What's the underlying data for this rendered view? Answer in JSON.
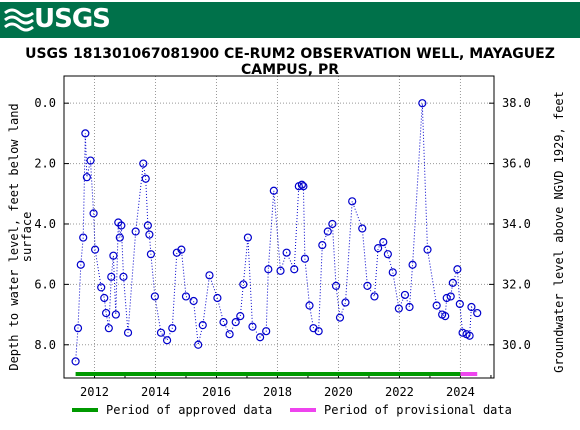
{
  "banner": {
    "logo_text": "USGS"
  },
  "colors": {
    "banner": "#00714a",
    "data_marker": "#0000cc",
    "approved": "#009900",
    "provisional": "#ee44ee"
  },
  "chart_data": {
    "type": "line",
    "title": "USGS 181301067081900 CE-RUM2 OBSERVATION WELL, MAYAGUEZ CAMPUS, PR",
    "ylabel_left": "Depth to water level, feet below land surface",
    "ylabel_left_lines": [
      "Depth to water level, feet below land",
      "surface"
    ],
    "ylabel_right": "Groundwater level above NGVD 1929, feet",
    "y_left_inverted": true,
    "ylim_left": [
      9.1,
      -0.9
    ],
    "y_left_ticks": [
      0.0,
      2.0,
      4.0,
      6.0,
      8.0
    ],
    "y_left_tick_labels": [
      "0.0",
      "2.0",
      "4.0",
      "6.0",
      "8.0"
    ],
    "y_right_tick_labels": [
      "38.0",
      "36.0",
      "34.0",
      "32.0",
      "30.0"
    ],
    "x_range": [
      2011.0,
      2025.1
    ],
    "x_ticks": [
      2012,
      2014,
      2016,
      2018,
      2020,
      2022,
      2024
    ],
    "x_tick_labels": [
      "2012",
      "2014",
      "2016",
      "2018",
      "2020",
      "2022",
      "2024"
    ],
    "grid": true,
    "legend_position": "bottom",
    "series": [
      {
        "name": "Depth to water level",
        "x": [
          2011.38,
          2011.46,
          2011.55,
          2011.63,
          2011.7,
          2011.75,
          2011.87,
          2011.97,
          2012.02,
          2012.22,
          2012.32,
          2012.38,
          2012.47,
          2012.55,
          2012.62,
          2012.7,
          2012.78,
          2012.83,
          2012.88,
          2012.95,
          2013.1,
          2013.35,
          2013.6,
          2013.68,
          2013.75,
          2013.8,
          2013.85,
          2013.98,
          2014.18,
          2014.38,
          2014.55,
          2014.7,
          2014.85,
          2015.0,
          2015.25,
          2015.4,
          2015.55,
          2015.77,
          2016.03,
          2016.23,
          2016.43,
          2016.63,
          2016.78,
          2016.88,
          2017.03,
          2017.18,
          2017.43,
          2017.63,
          2017.7,
          2017.88,
          2018.1,
          2018.3,
          2018.55,
          2018.7,
          2018.8,
          2018.85,
          2018.9,
          2019.05,
          2019.18,
          2019.35,
          2019.47,
          2019.65,
          2019.8,
          2019.92,
          2020.05,
          2020.23,
          2020.45,
          2020.78,
          2020.95,
          2021.18,
          2021.3,
          2021.47,
          2021.62,
          2021.78,
          2021.98,
          2022.18,
          2022.33,
          2022.43,
          2022.75,
          2022.92,
          2023.22,
          2023.4,
          2023.5,
          2023.55,
          2023.68,
          2023.75,
          2023.9,
          2023.98,
          2024.07,
          2024.2,
          2024.3,
          2024.36,
          2024.55
        ],
        "y": [
          8.55,
          7.45,
          5.35,
          4.45,
          1.0,
          2.45,
          1.9,
          3.65,
          4.85,
          6.1,
          6.45,
          6.95,
          7.45,
          5.75,
          5.05,
          7.0,
          3.95,
          4.45,
          4.05,
          5.75,
          7.6,
          4.25,
          2.0,
          2.5,
          4.05,
          4.35,
          5.0,
          6.4,
          7.6,
          7.85,
          7.45,
          4.95,
          4.85,
          6.4,
          6.55,
          8.0,
          7.35,
          5.7,
          6.45,
          7.25,
          7.65,
          7.25,
          7.05,
          6.0,
          4.45,
          7.4,
          7.75,
          7.55,
          5.5,
          2.9,
          5.55,
          4.95,
          5.5,
          2.75,
          2.7,
          2.75,
          5.15,
          6.7,
          7.45,
          7.55,
          4.7,
          4.25,
          4.0,
          6.05,
          7.1,
          6.6,
          3.25,
          4.15,
          6.05,
          6.4,
          4.8,
          4.6,
          5.0,
          5.6,
          6.8,
          6.35,
          6.75,
          5.35,
          0.0,
          4.85,
          6.7,
          7.0,
          7.05,
          6.45,
          6.4,
          5.95,
          5.5,
          6.65,
          7.6,
          7.65,
          7.7,
          6.75,
          6.95
        ]
      }
    ],
    "periods": [
      {
        "name": "Period of approved data",
        "start": 2011.38,
        "end": 2024.0
      },
      {
        "name": "Period of provisional data",
        "start": 2024.0,
        "end": 2024.55
      }
    ],
    "legend": [
      {
        "label": "Period of approved data"
      },
      {
        "label": "Period of provisional data"
      }
    ]
  }
}
